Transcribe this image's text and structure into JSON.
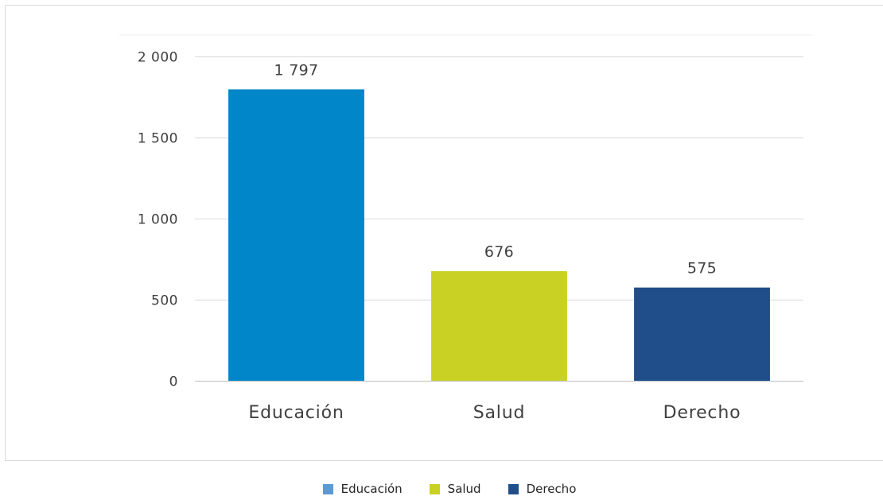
{
  "chart_data": {
    "type": "bar",
    "categories": [
      "Educación",
      "Salud",
      "Derecho"
    ],
    "values": [
      1797,
      676,
      575
    ],
    "value_labels": [
      "1 797",
      "676",
      "575"
    ],
    "colors": [
      "#0086c9",
      "#c9d224",
      "#1f4e8a"
    ],
    "legend_colors": [
      "#5b9bd5",
      "#c9d224",
      "#1f4e8a"
    ],
    "ylim": [
      0,
      2000
    ],
    "yticks": [
      0,
      500,
      1000,
      1500,
      2000
    ],
    "ytick_labels": [
      "0",
      "500",
      "1 000",
      "1 500",
      "2 000"
    ],
    "grid": true,
    "legend_position": "bottom",
    "title": "",
    "xlabel": "",
    "ylabel": ""
  },
  "legend": {
    "items": [
      {
        "label": "Educación",
        "color": "#5b9bd5"
      },
      {
        "label": "Salud",
        "color": "#c9d224"
      },
      {
        "label": "Derecho",
        "color": "#1f4e8a"
      }
    ]
  }
}
